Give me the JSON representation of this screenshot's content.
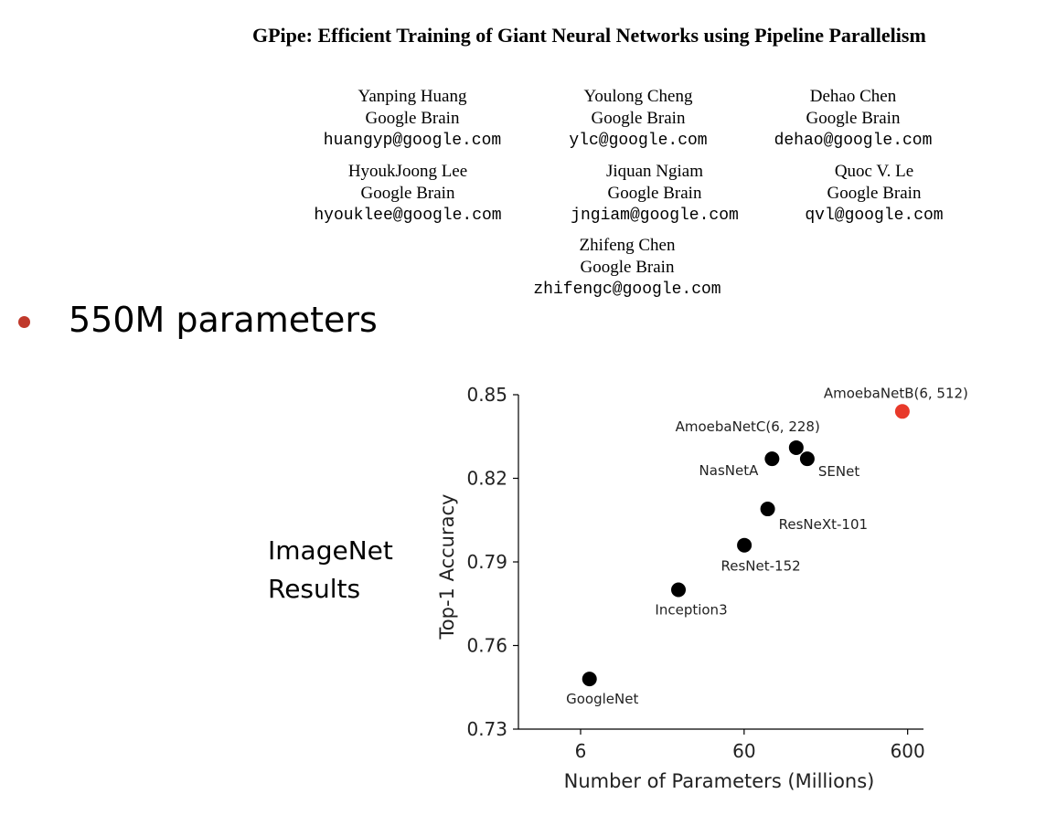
{
  "paper": {
    "title": "GPipe: Efficient Training of Giant Neural Networks using Pipeline Parallelism",
    "authors": [
      {
        "name": "Yanping Huang",
        "affiliation": "Google Brain",
        "email": "huangyp@google.com"
      },
      {
        "name": "Youlong Cheng",
        "affiliation": "Google Brain",
        "email": "ylc@google.com"
      },
      {
        "name": "Dehao Chen",
        "affiliation": "Google Brain",
        "email": "dehao@google.com"
      },
      {
        "name": "HyoukJoong Lee",
        "affiliation": "Google Brain",
        "email": "hyouklee@google.com"
      },
      {
        "name": "Jiquan Ngiam",
        "affiliation": "Google Brain",
        "email": "jngiam@google.com"
      },
      {
        "name": "Quoc V. Le",
        "affiliation": "Google Brain",
        "email": "qvl@google.com"
      },
      {
        "name": "Zhifeng Chen",
        "affiliation": "Google Brain",
        "email": "zhifengc@google.com"
      }
    ]
  },
  "bullet": {
    "text": "550M parameters",
    "color": "#c0392b"
  },
  "side_label": {
    "line1": "ImageNet",
    "line2": "Results"
  },
  "chart_data": {
    "type": "scatter",
    "title": "",
    "xlabel": "Number of Parameters (Millions)",
    "ylabel": "Top-1 Accuracy",
    "x_scale": "log",
    "xlim": [
      2.5,
      750
    ],
    "ylim": [
      0.73,
      0.85
    ],
    "x_ticks": [
      6,
      60,
      600
    ],
    "y_ticks": [
      0.73,
      0.76,
      0.79,
      0.82,
      0.85
    ],
    "y_tick_labels": [
      "0.73",
      "0.76",
      "0.79",
      "0.82",
      "0.85"
    ],
    "grid": false,
    "points": [
      {
        "label": "GoogleNet",
        "x": 6.8,
        "y": 0.748,
        "color": "#000000"
      },
      {
        "label": "Inception3",
        "x": 23.8,
        "y": 0.78,
        "color": "#000000"
      },
      {
        "label": "ResNet-152",
        "x": 60.2,
        "y": 0.796,
        "color": "#000000"
      },
      {
        "label": "ResNeXt-101",
        "x": 83.6,
        "y": 0.809,
        "color": "#000000"
      },
      {
        "label": "NasNetA",
        "x": 88.9,
        "y": 0.827,
        "color": "#000000"
      },
      {
        "label": "SENet",
        "x": 146,
        "y": 0.827,
        "color": "#000000"
      },
      {
        "label": "AmoebaNetC(6, 228)",
        "x": 125,
        "y": 0.831,
        "color": "#000000"
      },
      {
        "label": "AmoebaNetB(6, 512)",
        "x": 557,
        "y": 0.844,
        "color": "#e8392a"
      }
    ]
  }
}
